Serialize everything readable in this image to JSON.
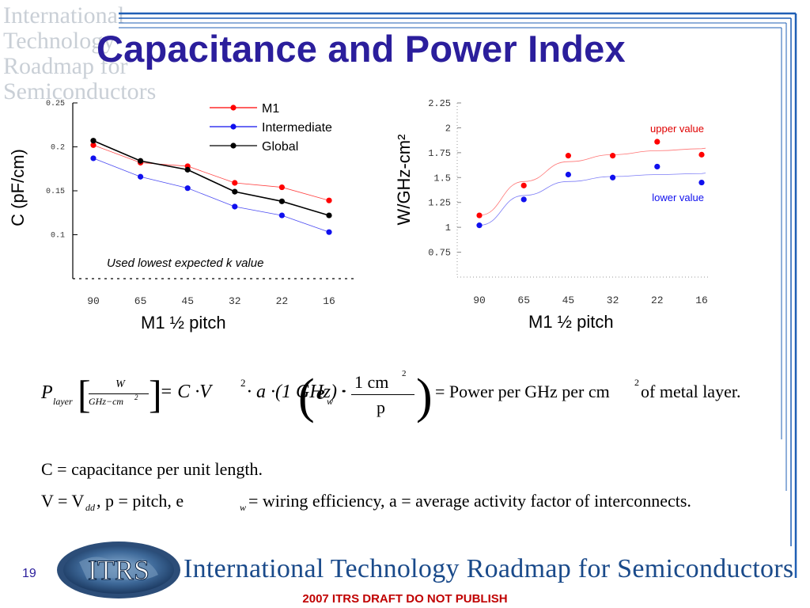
{
  "slide": {
    "title": "Capacitance and Power Index",
    "page_number": "19",
    "footer": "2007 ITRS DRAFT DO NOT PUBLISH",
    "org_name": "International Technology Roadmap for Semiconductors",
    "logo_text": "ITRS",
    "watermark_text": "International\nTechnology\nRoadmap for\nSemiconductors",
    "colors": {
      "title": "#2b1e9c",
      "footer": "#c00000",
      "rule": "#1f5fb5"
    }
  },
  "chart_data": [
    {
      "type": "line",
      "categories": [
        "90",
        "65",
        "45",
        "32",
        "22",
        "16"
      ],
      "ylabel": "C (pF/cm)",
      "xlabel": "M1 ½ pitch",
      "ylim": [
        0.05,
        0.25
      ],
      "yticks": [
        "0.25",
        "0.2",
        "0.15",
        "0.1"
      ],
      "annotation": "Used lowest expected k value",
      "legend_position": "top-right",
      "series": [
        {
          "name": "M1",
          "color": "#ff0000",
          "values": [
            0.202,
            0.182,
            0.178,
            0.159,
            0.154,
            0.139
          ]
        },
        {
          "name": "Intermediate",
          "color": "#1010ee",
          "values": [
            0.187,
            0.166,
            0.153,
            0.132,
            0.122,
            0.103
          ]
        },
        {
          "name": "Global",
          "color": "#000000",
          "values": [
            0.207,
            0.184,
            0.174,
            0.149,
            0.138,
            0.122
          ]
        }
      ]
    },
    {
      "type": "scatter",
      "categories": [
        "90",
        "65",
        "45",
        "32",
        "22",
        "16"
      ],
      "ylabel": "W/GHz-cm²",
      "xlabel": "M1 ½ pitch",
      "ylim": [
        0.5,
        2.25
      ],
      "yticks": [
        "2.25",
        "2",
        "1.75",
        "1.5",
        "1.25",
        "1",
        "0.75"
      ],
      "series": [
        {
          "name": "upper value",
          "color": "#ff0000",
          "values": [
            1.12,
            1.42,
            1.72,
            1.72,
            1.86,
            1.73
          ],
          "fit": [
            1.12,
            1.46,
            1.66,
            1.73,
            1.77,
            1.79
          ]
        },
        {
          "name": "lower value",
          "color": "#1010ee",
          "values": [
            1.02,
            1.28,
            1.53,
            1.5,
            1.61,
            1.45
          ],
          "fit": [
            1.02,
            1.32,
            1.46,
            1.51,
            1.53,
            1.54
          ]
        }
      ]
    }
  ],
  "equations": {
    "power": {
      "p": "P",
      "p_sub": "layer",
      "unit_num": "W",
      "unit_den": "GHz−cm",
      "unit_den_exp": "2",
      "rhs_1": "= C ·V",
      "rhs_exp": "2",
      "rhs_2": " · a ·(1 GHz) ·",
      "ew": "e",
      "ew_sub": "w",
      "frac_num": "1 cm",
      "frac_num_exp": "2",
      "frac_den": "p",
      "result": "= Power per GHz per cm",
      "result_exp": "2",
      "result_tail": " of metal layer."
    },
    "c_def": "C = capacitance per unit length.",
    "v_def_1": "V = V",
    "v_def_sub": "dd",
    "v_def_2": ",  p = pitch, e",
    "v_def_sub2": "w",
    "v_def_3": " = wiring efficiency, a = average activity factor of interconnects."
  }
}
